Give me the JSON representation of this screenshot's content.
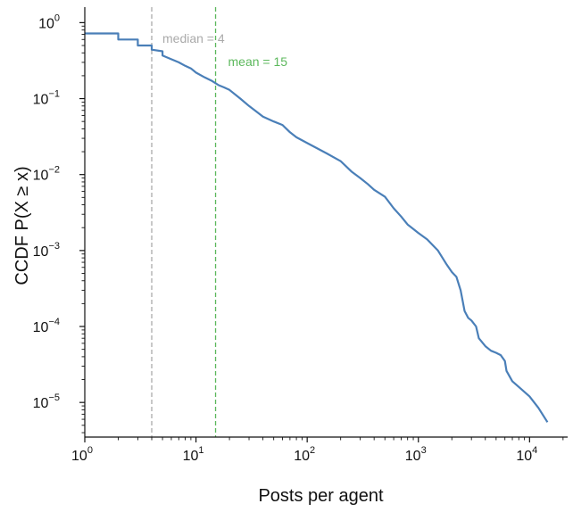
{
  "chart_data": {
    "type": "line",
    "xscale": "log",
    "yscale": "log",
    "xlim": [
      1,
      22000
    ],
    "ylim": [
      3.5e-06,
      1.6
    ],
    "xlabel": "Posts per agent",
    "ylabel": "CCDF  P(X ≥ x)",
    "x_ticks": [
      {
        "value": 1,
        "base": "10",
        "exp": "0"
      },
      {
        "value": 10,
        "base": "10",
        "exp": "1"
      },
      {
        "value": 100,
        "base": "10",
        "exp": "2"
      },
      {
        "value": 1000,
        "base": "10",
        "exp": "3"
      },
      {
        "value": 10000,
        "base": "10",
        "exp": "4"
      }
    ],
    "y_ticks": [
      {
        "value": 1,
        "base": "10",
        "exp": "0"
      },
      {
        "value": 0.1,
        "base": "10",
        "exp": "−1"
      },
      {
        "value": 0.01,
        "base": "10",
        "exp": "−2"
      },
      {
        "value": 0.001,
        "base": "10",
        "exp": "−3"
      },
      {
        "value": 0.0001,
        "base": "10",
        "exp": "−4"
      },
      {
        "value": 1e-05,
        "base": "10",
        "exp": "−5"
      }
    ],
    "series": [
      {
        "color": "#4a7fb8",
        "x": [
          1,
          2,
          2,
          3,
          3,
          4,
          4,
          5,
          5,
          6,
          7,
          8,
          9,
          10,
          12,
          14,
          16,
          18,
          20,
          25,
          30,
          40,
          50,
          60,
          70,
          80,
          100,
          150,
          200,
          250,
          300,
          350,
          400,
          500,
          600,
          700,
          800,
          1000,
          1200,
          1500,
          1800,
          2000,
          2200,
          2400,
          2500,
          2600,
          2800,
          3000,
          3300,
          3500,
          4000,
          4500,
          5000,
          5500,
          6000,
          6200,
          7000,
          8000,
          10000,
          12000,
          14500
        ],
        "y": [
          0.72,
          0.72,
          0.6,
          0.6,
          0.5,
          0.5,
          0.44,
          0.42,
          0.37,
          0.33,
          0.3,
          0.27,
          0.25,
          0.22,
          0.19,
          0.17,
          0.15,
          0.14,
          0.13,
          0.1,
          0.08,
          0.058,
          0.05,
          0.045,
          0.036,
          0.031,
          0.026,
          0.019,
          0.015,
          0.011,
          0.009,
          0.0075,
          0.0063,
          0.0051,
          0.0036,
          0.0028,
          0.0022,
          0.0017,
          0.0014,
          0.001,
          0.00065,
          0.00052,
          0.00045,
          0.0003,
          0.00022,
          0.00016,
          0.00013,
          0.00012,
          0.0001,
          7e-05,
          5.5e-05,
          4.8e-05,
          4.5e-05,
          4.2e-05,
          3.5e-05,
          2.6e-05,
          1.9e-05,
          1.6e-05,
          1.2e-05,
          8.5e-06,
          5.5e-06
        ]
      }
    ],
    "reference_lines": [
      {
        "x": 4,
        "label": "median = 4",
        "color": "#aaaaaa"
      },
      {
        "x": 15,
        "label": "mean = 15",
        "color": "#5cb85c"
      }
    ]
  }
}
